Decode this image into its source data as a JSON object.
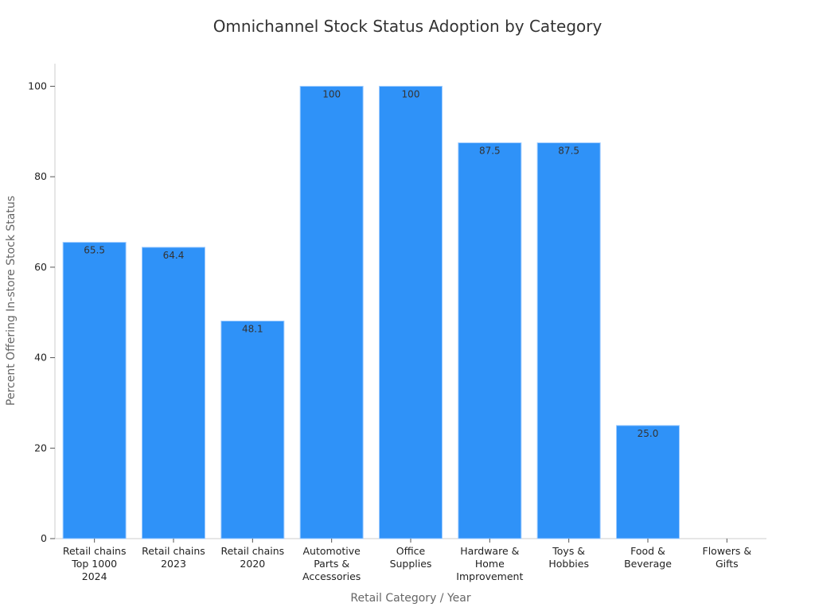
{
  "chart_data": {
    "type": "bar",
    "title": "Omnichannel Stock Status Adoption by Category",
    "xlabel": "Retail Category / Year",
    "ylabel": "Percent Offering In-store Stock Status",
    "categories": [
      [
        "Retail chains",
        "Top 1000",
        "2024"
      ],
      [
        "Retail chains",
        "2023"
      ],
      [
        "Retail chains",
        "2020"
      ],
      [
        "Automotive",
        "Parts &",
        "Accessories"
      ],
      [
        "Office",
        "Supplies"
      ],
      [
        "Hardware &",
        "Home",
        "Improvement"
      ],
      [
        "Toys &",
        "Hobbies"
      ],
      [
        "Food &",
        "Beverage"
      ],
      [
        "Flowers &",
        "Gifts"
      ]
    ],
    "values": [
      65.5,
      64.4,
      48.1,
      100,
      100,
      87.5,
      87.5,
      25.0,
      0
    ],
    "data_labels": [
      "65.5",
      "64.4",
      "48.1",
      "100",
      "100",
      "87.5",
      "87.5",
      "25.0",
      ""
    ],
    "ylim": [
      0,
      105
    ],
    "yticks": [
      0,
      20,
      40,
      60,
      80,
      100
    ],
    "grid": false,
    "legend": "none",
    "colors": {
      "bar": "#2f92f8",
      "bar_edge": "#9ecbff",
      "axis": "#cccccc"
    }
  }
}
